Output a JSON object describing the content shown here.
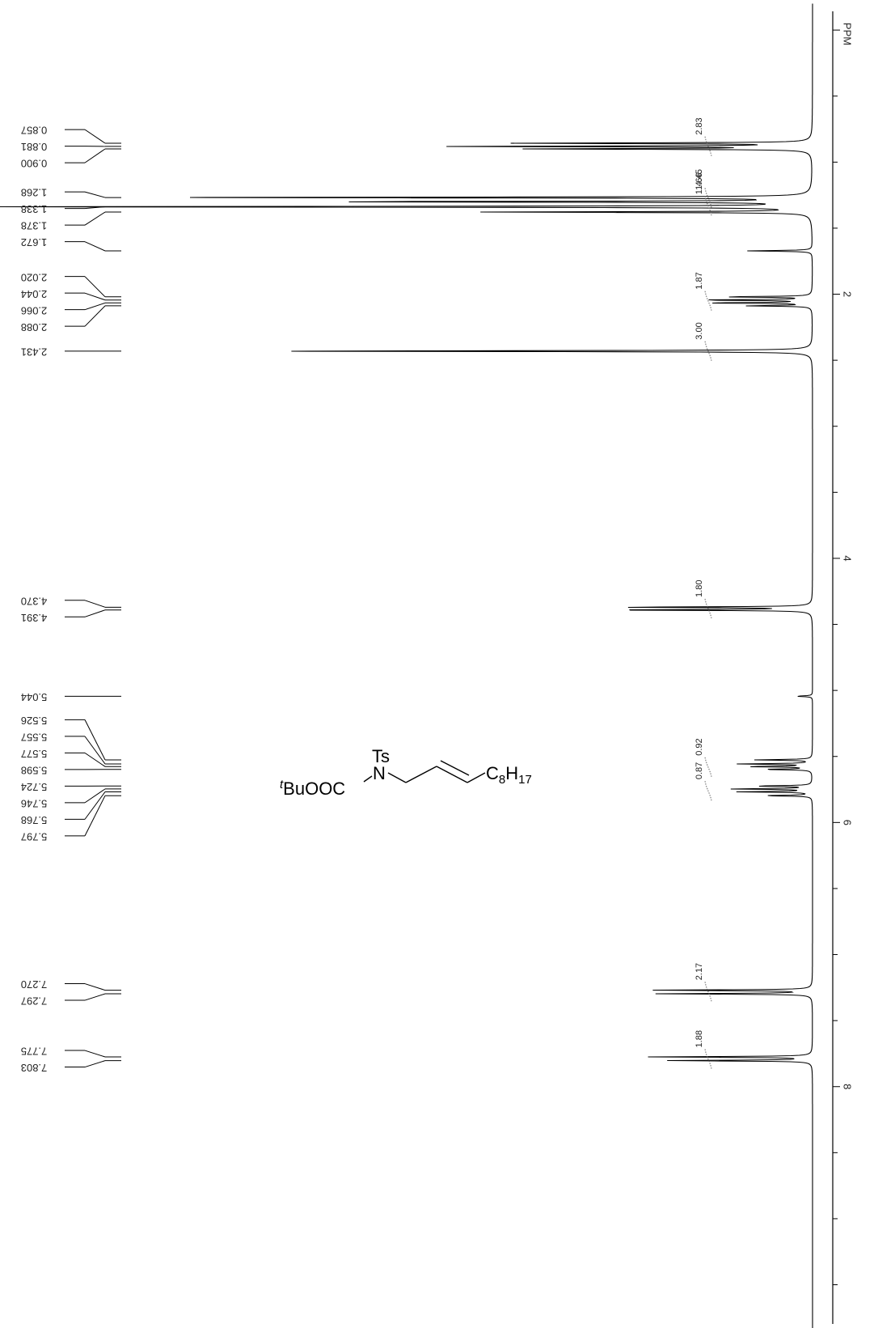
{
  "chart_data": {
    "type": "line",
    "title": "",
    "axis_unit": "PPM",
    "axis_ticks": [
      "2",
      "4",
      "6",
      "8"
    ],
    "ppm_range": [
      -0.2,
      10.0
    ],
    "peak_labels": [
      "0.857",
      "0.881",
      "0.900",
      "1.268",
      "1.338",
      "1.378",
      "1.672",
      "2.020",
      "2.044",
      "2.066",
      "2.088",
      "2.431",
      "4.370",
      "4.391",
      "5.044",
      "5.526",
      "5.557",
      "5.577",
      "5.598",
      "5.724",
      "5.746",
      "5.768",
      "5.797",
      "7.270",
      "7.297",
      "7.775",
      "7.803"
    ],
    "integrals": [
      {
        "ppm": 0.88,
        "value": "2.83"
      },
      {
        "ppm": 1.27,
        "value": "4.45"
      },
      {
        "ppm": 1.33,
        "value": "11.66"
      },
      {
        "ppm": 2.05,
        "value": "1.87"
      },
      {
        "ppm": 2.43,
        "value": "3.00"
      },
      {
        "ppm": 4.38,
        "value": "1.80"
      },
      {
        "ppm": 5.58,
        "value": "0.92"
      },
      {
        "ppm": 5.76,
        "value": "0.87"
      },
      {
        "ppm": 7.28,
        "value": "2.17"
      },
      {
        "ppm": 7.79,
        "value": "1.88"
      }
    ],
    "peaks": [
      {
        "ppm": 0.857,
        "h": 0.36
      },
      {
        "ppm": 0.881,
        "h": 0.44
      },
      {
        "ppm": 0.9,
        "h": 0.34
      },
      {
        "ppm": 1.268,
        "h": 0.77
      },
      {
        "ppm": 1.3,
        "h": 0.62
      },
      {
        "ppm": 1.338,
        "h": 1.0
      },
      {
        "ppm": 1.378,
        "h": 0.4
      },
      {
        "ppm": 1.672,
        "h": 0.08
      },
      {
        "ppm": 2.02,
        "h": 0.11
      },
      {
        "ppm": 2.044,
        "h": 0.14
      },
      {
        "ppm": 2.066,
        "h": 0.13
      },
      {
        "ppm": 2.088,
        "h": 0.08
      },
      {
        "ppm": 2.431,
        "h": 0.67
      },
      {
        "ppm": 4.37,
        "h": 0.24
      },
      {
        "ppm": 4.391,
        "h": 0.26
      },
      {
        "ppm": 5.044,
        "h": 0.02
      },
      {
        "ppm": 5.526,
        "h": 0.07
      },
      {
        "ppm": 5.557,
        "h": 0.09
      },
      {
        "ppm": 5.577,
        "h": 0.08
      },
      {
        "ppm": 5.598,
        "h": 0.06
      },
      {
        "ppm": 5.724,
        "h": 0.07
      },
      {
        "ppm": 5.746,
        "h": 0.1
      },
      {
        "ppm": 5.768,
        "h": 0.09
      },
      {
        "ppm": 5.797,
        "h": 0.06
      },
      {
        "ppm": 7.27,
        "h": 0.2
      },
      {
        "ppm": 7.297,
        "h": 0.19
      },
      {
        "ppm": 7.775,
        "h": 0.2
      },
      {
        "ppm": 7.803,
        "h": 0.18
      }
    ]
  },
  "structure": {
    "protecting_group": "Ts",
    "ester_prefix_italic": "t",
    "ester_text": "BuOOC",
    "nitrogen": "N",
    "chain_c": "C",
    "chain_c_sub": "8",
    "chain_h": "H",
    "chain_h_sub": "17"
  }
}
